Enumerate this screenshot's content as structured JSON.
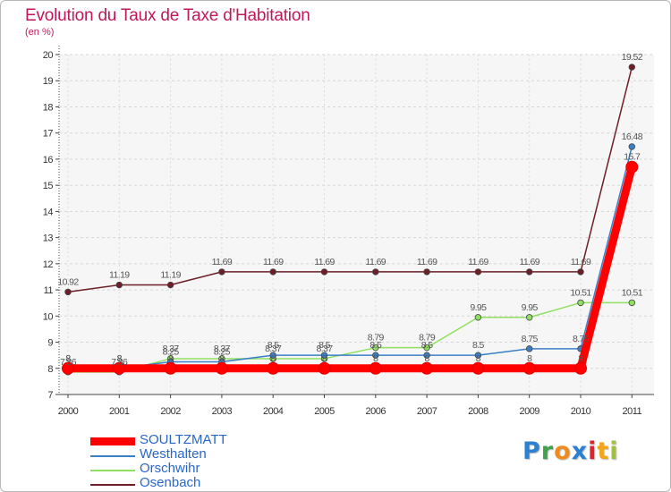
{
  "chart_data": {
    "type": "line",
    "title": "Evolution du Taux de Taxe d'Habitation",
    "subtitle": "(en %)",
    "xlabel": "",
    "ylabel": "",
    "ylim": [
      7,
      20
    ],
    "yticks": [
      7,
      8,
      9,
      10,
      11,
      12,
      13,
      14,
      15,
      16,
      17,
      18,
      19,
      20
    ],
    "categories": [
      "2000",
      "2001",
      "2002",
      "2003",
      "2004",
      "2005",
      "2006",
      "2007",
      "2008",
      "2009",
      "2010",
      "2011"
    ],
    "series": [
      {
        "name": "Osenbach",
        "color": "#6e1e26",
        "values": [
          10.92,
          11.19,
          11.19,
          11.69,
          11.69,
          11.69,
          11.69,
          11.69,
          11.69,
          11.69,
          11.69,
          19.52
        ],
        "labels": [
          "10.92",
          "11.19",
          "11.19",
          "11.69",
          "11.69",
          "11.69",
          "11.69",
          "11.69",
          "11.69",
          "11.69",
          "11.69",
          "19.52"
        ]
      },
      {
        "name": "Orschwihr",
        "color": "#90e060",
        "values": [
          7.86,
          7.86,
          8.37,
          8.37,
          8.37,
          8.37,
          8.79,
          8.79,
          9.95,
          9.95,
          10.51,
          10.51
        ],
        "labels": [
          "7.86",
          "7.86",
          "8.37",
          "8.37",
          "8.37",
          "8.37",
          "8.79",
          "8.79",
          "9.95",
          "9.95",
          "10.51",
          "10.51"
        ]
      },
      {
        "name": "Westhalten",
        "color": "#3a80c8",
        "values": [
          8,
          8,
          8.25,
          8.25,
          8.5,
          8.5,
          8.5,
          8.5,
          8.5,
          8.75,
          8.75,
          16.48
        ],
        "labels": [
          "8",
          "8",
          "8.25",
          "8.25",
          "8.5",
          "8.5",
          "8.5",
          "8.5",
          "8.5",
          "8.75",
          "8.75",
          "16.48"
        ]
      },
      {
        "name": "SOULTZMATT",
        "color": "#ff0000",
        "values": [
          8,
          8,
          8,
          8,
          8,
          8,
          8,
          8,
          8,
          8,
          8,
          15.7
        ],
        "labels": [
          "8",
          "8",
          "8",
          "8",
          "8",
          "8",
          "8",
          "8",
          "8",
          "8",
          "8",
          "15.7"
        ]
      }
    ],
    "legend": [
      "SOULTZMATT",
      "Westhalten",
      "Orschwihr",
      "Osenbach"
    ]
  },
  "logo": {
    "letters": [
      "P",
      "r",
      "o",
      "x",
      "i",
      "t",
      "i"
    ],
    "colors": [
      "#2d7fd0",
      "#3fa34d",
      "#f08a1c",
      "#2d7fd0",
      "#e0242f",
      "#f2a71b",
      "#9fc23a"
    ]
  }
}
